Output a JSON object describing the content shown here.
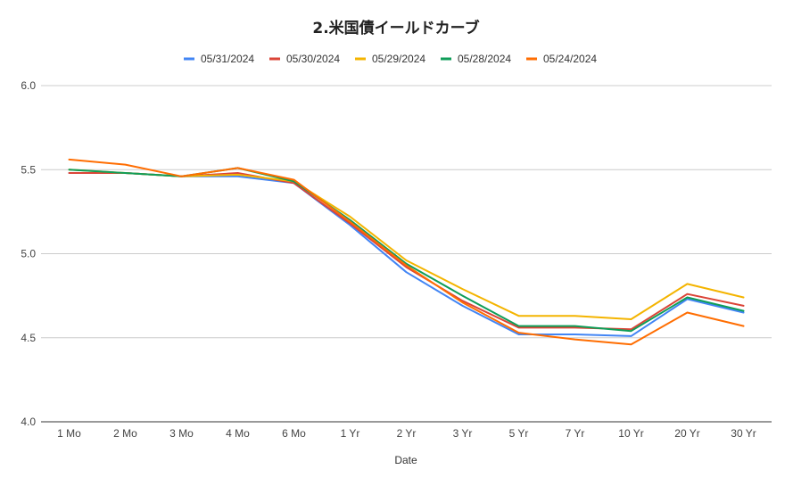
{
  "chart_data": {
    "type": "line",
    "title": "2.米国債イールドカーブ",
    "xlabel": "Date",
    "ylabel": "",
    "categories": [
      "1 Mo",
      "2 Mo",
      "3 Mo",
      "4 Mo",
      "6 Mo",
      "1 Yr",
      "2 Yr",
      "3 Yr",
      "5 Yr",
      "7 Yr",
      "10 Yr",
      "20 Yr",
      "30 Yr"
    ],
    "ylim": [
      4.0,
      6.0
    ],
    "yticks": [
      "4.0",
      "4.5",
      "5.0",
      "5.5",
      "6.0"
    ],
    "grid": true,
    "legend_position": "top",
    "series": [
      {
        "name": "05/31/2024",
        "color": "#4285f4",
        "values": [
          5.48,
          5.48,
          5.46,
          5.46,
          5.42,
          5.17,
          4.89,
          4.69,
          4.52,
          4.52,
          4.51,
          4.73,
          4.65
        ]
      },
      {
        "name": "05/30/2024",
        "color": "#db4437",
        "values": [
          5.48,
          5.48,
          5.46,
          5.48,
          5.42,
          5.18,
          4.92,
          4.72,
          4.56,
          4.56,
          4.55,
          4.76,
          4.69
        ]
      },
      {
        "name": "05/29/2024",
        "color": "#f4b400",
        "values": [
          5.5,
          5.48,
          5.46,
          5.47,
          5.43,
          5.22,
          4.96,
          4.79,
          4.63,
          4.63,
          4.61,
          4.82,
          4.74
        ]
      },
      {
        "name": "05/28/2024",
        "color": "#0f9d58",
        "values": [
          5.5,
          5.48,
          5.46,
          5.51,
          5.43,
          5.2,
          4.94,
          4.75,
          4.57,
          4.57,
          4.54,
          4.74,
          4.66
        ]
      },
      {
        "name": "05/24/2024",
        "color": "#ff6d01",
        "values": [
          5.56,
          5.53,
          5.46,
          5.51,
          5.44,
          5.19,
          4.93,
          4.71,
          4.53,
          4.49,
          4.46,
          4.65,
          4.57
        ]
      }
    ]
  }
}
